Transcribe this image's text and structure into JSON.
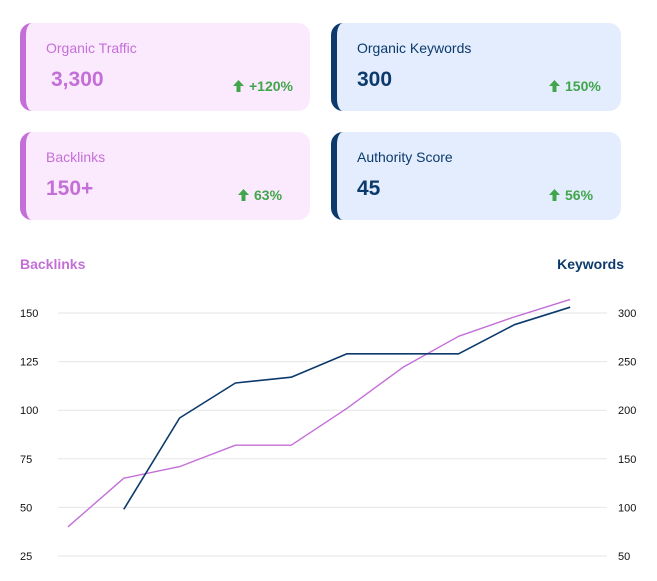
{
  "cards": [
    {
      "label": "Organic Traffic",
      "value": "3,300",
      "change": "+120%",
      "theme": "pink"
    },
    {
      "label": "Organic Keywords",
      "value": "300",
      "change": "150%",
      "theme": "blue"
    },
    {
      "label": "Backlinks",
      "value": "150+",
      "change": "63%",
      "theme": "pink"
    },
    {
      "label": "Authority Score",
      "value": "45",
      "change": "56%",
      "theme": "blue"
    }
  ],
  "colors": {
    "backlinks": "#c46fd8",
    "keywords": "#0c3a6c",
    "positive": "#41a54b",
    "grid": "#e6e6e6"
  },
  "chart_data": {
    "type": "line",
    "title": "",
    "y_left_label": "Backlinks",
    "y_right_label": "Keywords",
    "y_left_ticks": [
      "150",
      "125",
      "100",
      "75",
      "50",
      "25"
    ],
    "y_right_ticks": [
      "300",
      "250",
      "200",
      "150",
      "100",
      "50"
    ],
    "y_left_range": [
      25,
      150
    ],
    "y_right_range": [
      50,
      300
    ],
    "grid": true,
    "series": [
      {
        "name": "Backlinks",
        "axis": "left",
        "color": "#c46fd8",
        "x": [
          0,
          1,
          2,
          3,
          4,
          5,
          6,
          7,
          8,
          9
        ],
        "values": [
          40,
          65,
          71,
          82,
          82,
          101,
          122,
          138,
          148,
          157
        ]
      },
      {
        "name": "Keywords",
        "axis": "right",
        "color": "#0c3a6c",
        "x": [
          1,
          2,
          3,
          4,
          5,
          6,
          7,
          8,
          9
        ],
        "values": [
          98,
          192,
          228,
          234,
          258,
          258,
          258,
          288,
          306
        ]
      }
    ]
  }
}
